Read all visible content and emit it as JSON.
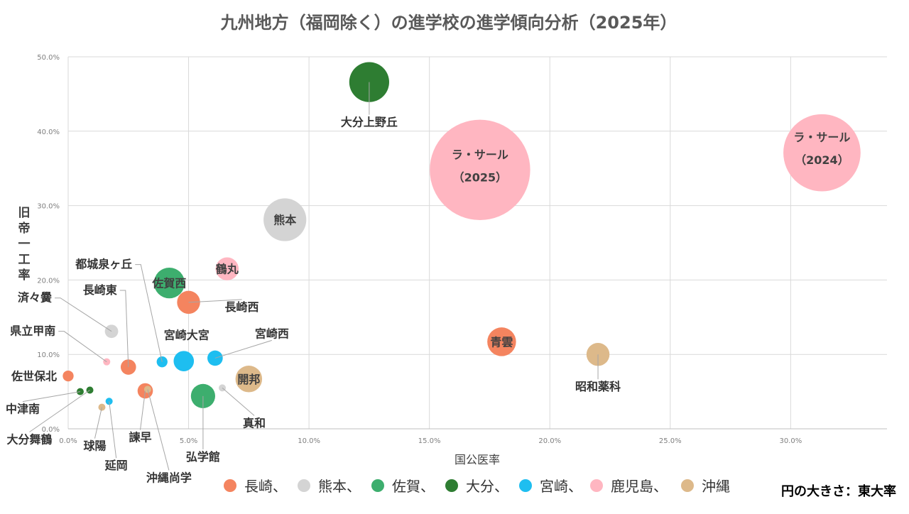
{
  "chart_data": {
    "type": "scatter",
    "title": "九州地方（福岡除く）の進学校の進学傾向分析（2025年）",
    "xlabel": "国公医率",
    "ylabel": "旧帝一工率",
    "xlim": [
      0,
      0.34
    ],
    "ylim": [
      0,
      0.5
    ],
    "x_ticks": [
      "0.0%",
      "5.0%",
      "10.0%",
      "15.0%",
      "20.0%",
      "25.0%",
      "30.0%"
    ],
    "y_ticks": [
      "0.0%",
      "10.0%",
      "20.0%",
      "30.0%",
      "40.0%",
      "50.0%"
    ],
    "grid": true,
    "size_note": "円の大きさ：東大率",
    "legend_position": "bottom",
    "legend": [
      {
        "label": "長崎、",
        "color": "#F4845F"
      },
      {
        "label": "熊本、",
        "color": "#D4D4D4"
      },
      {
        "label": "佐賀、",
        "color": "#3DAE6E"
      },
      {
        "label": "大分、",
        "color": "#2E7D32"
      },
      {
        "label": "宮崎、",
        "color": "#1EBEF0"
      },
      {
        "label": "鹿児島、",
        "color": "#FFB6C1"
      },
      {
        "label": "沖縄",
        "color": "#DDB98A"
      }
    ],
    "points": [
      {
        "name": "大分上野丘",
        "group": "大分",
        "x": 0.125,
        "y": 0.466,
        "size": 0.027
      },
      {
        "name": "ラ・サール",
        "sub": "（2025）",
        "group": "鹿児島",
        "x": 0.171,
        "y": 0.348,
        "size": 0.171
      },
      {
        "name": "ラ・サール",
        "sub": "（2024）",
        "group": "鹿児島",
        "x": 0.313,
        "y": 0.371,
        "size": 0.101
      },
      {
        "name": "熊本",
        "group": "熊本",
        "x": 0.09,
        "y": 0.281,
        "size": 0.031
      },
      {
        "name": "鶴丸",
        "group": "鹿児島",
        "x": 0.066,
        "y": 0.215,
        "size": 0.009
      },
      {
        "name": "佐賀西",
        "group": "佐賀",
        "x": 0.042,
        "y": 0.196,
        "size": 0.016
      },
      {
        "name": "長崎西",
        "group": "長崎",
        "x": 0.05,
        "y": 0.17,
        "size": 0.009
      },
      {
        "name": "済々黌",
        "group": "熊本",
        "x": 0.018,
        "y": 0.131,
        "size": 0.003
      },
      {
        "name": "青雲",
        "group": "長崎",
        "x": 0.18,
        "y": 0.117,
        "size": 0.014
      },
      {
        "name": "昭和薬科",
        "group": "沖縄",
        "x": 0.22,
        "y": 0.1,
        "size": 0.009
      },
      {
        "name": "県立甲南",
        "group": "鹿児島",
        "x": 0.016,
        "y": 0.09,
        "size": 0.0005
      },
      {
        "name": "長崎東",
        "group": "長崎",
        "x": 0.025,
        "y": 0.083,
        "size": 0.004
      },
      {
        "name": "都城泉ヶ丘",
        "group": "宮崎",
        "x": 0.039,
        "y": 0.09,
        "size": 0.002
      },
      {
        "name": "宮崎大宮",
        "group": "宮崎",
        "x": 0.048,
        "y": 0.091,
        "size": 0.007
      },
      {
        "name": "宮崎西",
        "group": "宮崎",
        "x": 0.061,
        "y": 0.095,
        "size": 0.004
      },
      {
        "name": "開邦",
        "group": "沖縄",
        "x": 0.075,
        "y": 0.067,
        "size": 0.012
      },
      {
        "name": "佐世保北",
        "group": "長崎",
        "x": 0.0,
        "y": 0.071,
        "size": 0.002
      },
      {
        "name": "弘学館",
        "group": "佐賀",
        "x": 0.056,
        "y": 0.044,
        "size": 0.01
      },
      {
        "name": "真和",
        "group": "熊本",
        "x": 0.064,
        "y": 0.055,
        "size": 0.0004
      },
      {
        "name": "諫早",
        "group": "長崎",
        "x": 0.032,
        "y": 0.051,
        "size": 0.004
      },
      {
        "name": "中津南",
        "group": "大分",
        "x": 0.005,
        "y": 0.05,
        "size": 0.0003
      },
      {
        "name": "大分舞鶴",
        "group": "大分",
        "x": 0.009,
        "y": 0.052,
        "size": 0.0004
      },
      {
        "name": "延岡",
        "group": "宮崎",
        "x": 0.017,
        "y": 0.037,
        "size": 0.0005
      },
      {
        "name": "球陽",
        "group": "沖縄",
        "x": 0.014,
        "y": 0.029,
        "size": 0.0004
      },
      {
        "name": "沖縄尚学",
        "group": "沖縄",
        "x": 0.033,
        "y": 0.053,
        "size": 0.0001
      }
    ]
  }
}
